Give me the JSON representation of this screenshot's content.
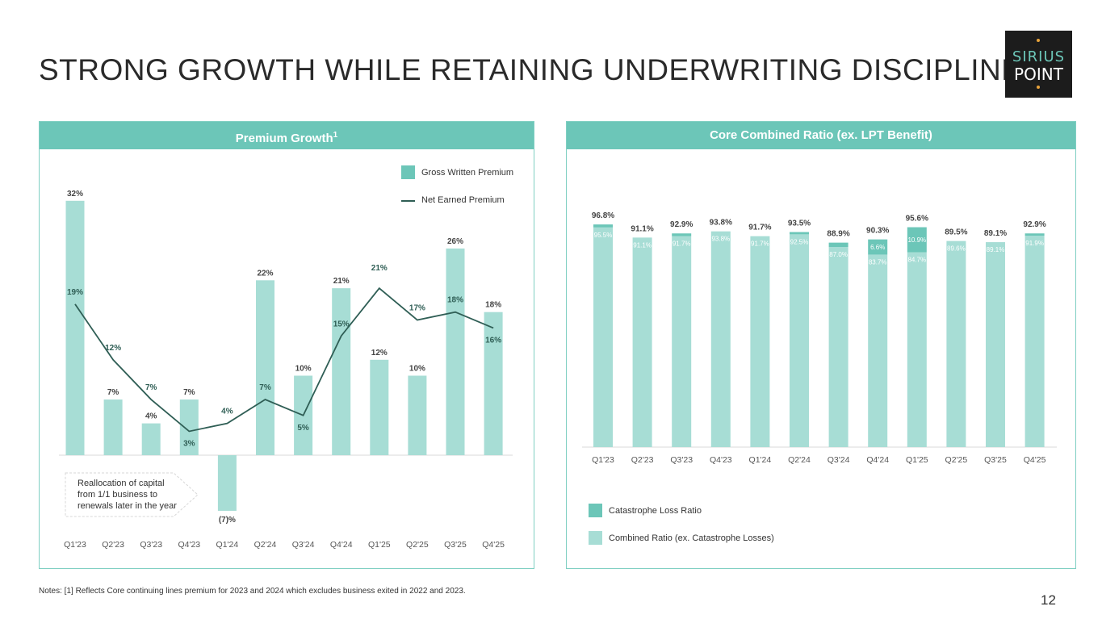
{
  "title": "STRONG GROWTH WHILE RETAINING UNDERWRITING DISCIPLINE",
  "logo": {
    "line1": "SIRIUS",
    "line2": "POINT"
  },
  "page_number": "12",
  "notes": "Notes: [1] Reflects Core continuing lines premium for 2023 and 2024 which excludes business exited in 2022 and 2023.",
  "colors": {
    "accent": "#6cc6b8",
    "bar_light": "#a7ddd5",
    "line": "#2f5e55",
    "dark_label": "#2f5e55"
  },
  "panel_left": {
    "heading": "Premium Growth",
    "heading_sup": "1",
    "legend_gwp": "Gross Written Premium",
    "legend_nep": "Net Earned Premium",
    "callout": [
      "Reallocation of capital",
      "from 1/1 business to",
      "renewals later in the year"
    ]
  },
  "panel_right": {
    "heading": "Core Combined Ratio (ex. LPT Benefit)",
    "legend_cat": "Catastrophe Loss Ratio",
    "legend_combined": "Combined Ratio (ex. Catastrophe Losses)"
  },
  "chart_data": [
    {
      "type": "bar",
      "title": "Premium Growth",
      "categories": [
        "Q1'23",
        "Q2'23",
        "Q3'23",
        "Q4'23",
        "Q1'24",
        "Q2'24",
        "Q3'24",
        "Q4'24",
        "Q1'25",
        "Q2'25",
        "Q3'25",
        "Q4'25"
      ],
      "series": [
        {
          "name": "Gross Written Premium",
          "kind": "bar",
          "values": [
            32,
            7,
            4,
            7,
            -7,
            22,
            10,
            21,
            12,
            10,
            26,
            18
          ],
          "labels": [
            "32%",
            "7%",
            "4%",
            "7%",
            "(7)%",
            "22%",
            "10%",
            "21%",
            "12%",
            "10%",
            "26%",
            "18%"
          ]
        },
        {
          "name": "Net Earned Premium",
          "kind": "line",
          "values": [
            19,
            12,
            7,
            3,
            4,
            7,
            5,
            15,
            21,
            17,
            18,
            16
          ],
          "labels": [
            "19%",
            "12%",
            "7%",
            "3%",
            "4%",
            "7%",
            "5%",
            "15%",
            "21%",
            "17%",
            "18%",
            "16%"
          ]
        }
      ],
      "ylim": [
        -7,
        32
      ]
    },
    {
      "type": "bar",
      "title": "Core Combined Ratio (ex. LPT Benefit)",
      "categories": [
        "Q1'23",
        "Q2'23",
        "Q3'23",
        "Q4'23",
        "Q1'24",
        "Q2'24",
        "Q3'24",
        "Q4'24",
        "Q1'25",
        "Q2'25",
        "Q3'25",
        "Q4'25"
      ],
      "totals": [
        96.8,
        91.1,
        92.9,
        93.8,
        91.7,
        93.5,
        88.9,
        90.3,
        95.6,
        89.5,
        89.1,
        92.9
      ],
      "total_labels": [
        "96.8%",
        "91.1%",
        "92.9%",
        "93.8%",
        "91.7%",
        "93.5%",
        "88.9%",
        "90.3%",
        "95.6%",
        "89.5%",
        "89.1%",
        "92.9%"
      ],
      "series": [
        {
          "name": "Combined Ratio (ex. Catastrophe Losses)",
          "values": [
            95.5,
            91.1,
            91.7,
            93.8,
            91.7,
            92.5,
            87.0,
            83.7,
            84.7,
            89.6,
            89.1,
            91.9
          ],
          "labels": [
            "95.5%",
            "91.1%",
            "91.7%",
            "93.8%",
            "91.7%",
            "92.5%",
            "87.0%",
            "83.7%",
            "84.7%",
            "89.6%",
            "89.1%",
            "91.9%"
          ]
        },
        {
          "name": "Catastrophe Loss Ratio",
          "values": [
            1.3,
            0,
            1.2,
            0,
            0,
            1.0,
            1.9,
            6.6,
            10.9,
            0,
            0,
            1.0
          ],
          "labels": [
            "",
            "",
            "",
            "",
            "",
            "",
            "",
            "6.6%",
            "10.9%",
            "",
            "",
            ""
          ]
        }
      ],
      "ylim": [
        0,
        96.8
      ]
    }
  ]
}
